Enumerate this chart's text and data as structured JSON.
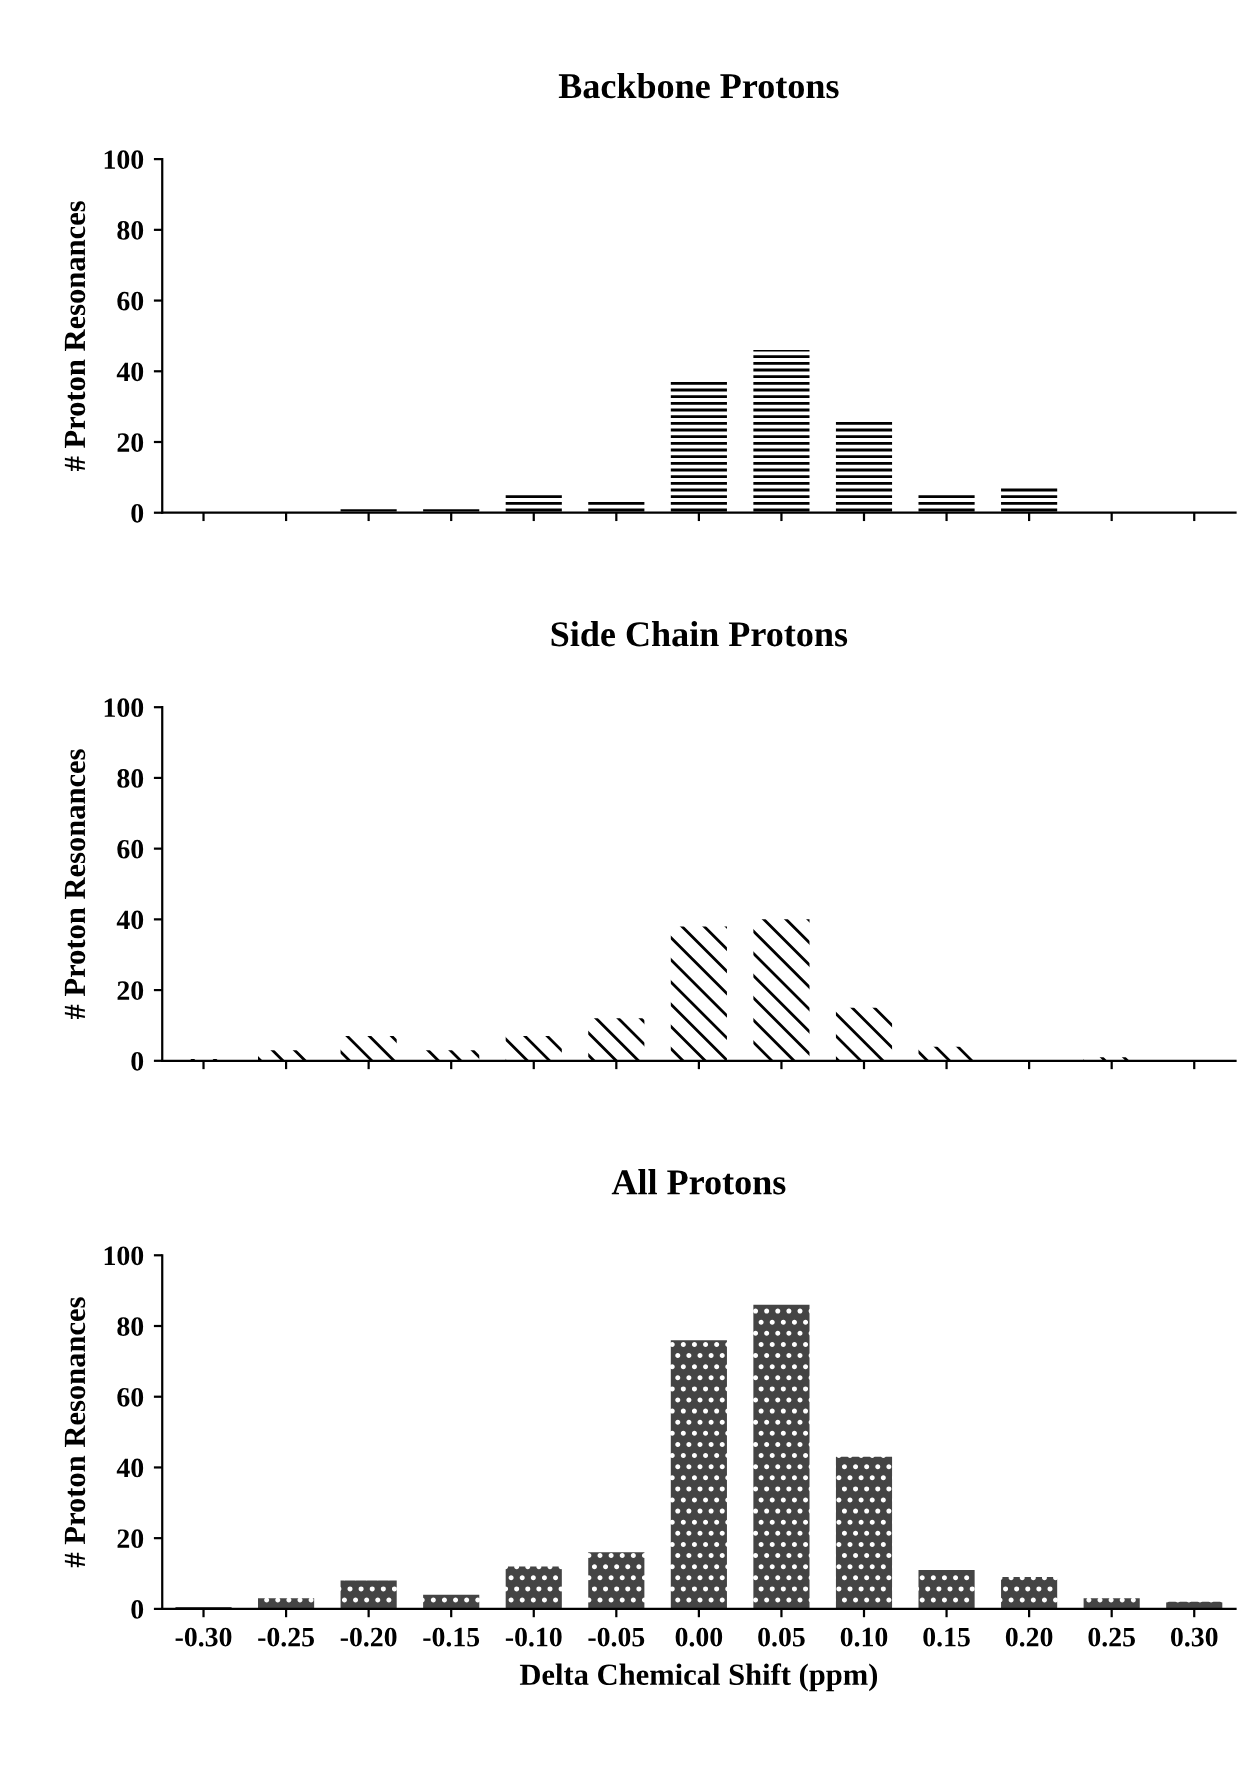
{
  "chart_data": [
    {
      "type": "bar",
      "title": "Backbone Protons",
      "ylabel": "# Proton Resonances",
      "categories": [
        "-0.30",
        "-0.25",
        "-0.20",
        "-0.15",
        "-0.10",
        "-0.05",
        "0.00",
        "0.05",
        "0.10",
        "0.15",
        "0.20",
        "0.25",
        "0.30"
      ],
      "tick_labels": "y",
      "series": [
        {
          "color": "#ffffff",
          "values": [
            0,
            0,
            1,
            1,
            5,
            4,
            38,
            46,
            26,
            5,
            7,
            0,
            0
          ]
        }
      ],
      "ylim": [
        0,
        100
      ],
      "yticks": [
        0,
        20,
        40,
        60,
        80,
        100
      ],
      "grid": false
    },
    {
      "type": "bar",
      "title": "Side Chain Protons",
      "ylabel": "# Proton Resonances",
      "categories": [
        "-0.30",
        "-0.25",
        "-0.20",
        "-0.15",
        "-0.10",
        "-0.05",
        "0.00",
        "0.05",
        "0.10",
        "0.15",
        "0.20",
        "0.25",
        "0.30"
      ],
      "tick_labels": "y",
      "series": [
        {
          "color": "#ffffff",
          "values": [
            0.5,
            3,
            7,
            3,
            7,
            12,
            38,
            40,
            15,
            4,
            0,
            1,
            0
          ]
        }
      ],
      "ylim": [
        0,
        100
      ],
      "yticks": [
        0,
        20,
        40,
        60,
        80,
        100
      ],
      "grid": false
    },
    {
      "type": "bar",
      "title": "All Protons",
      "ylabel": "# Proton Resonances",
      "xlabel": "Delta Chemical Shift (ppm)",
      "categories": [
        "-0.30",
        "-0.25",
        "-0.20",
        "-0.15",
        "-0.10",
        "-0.05",
        "0.00",
        "0.05",
        "0.10",
        "0.15",
        "0.20",
        "0.25",
        "0.30"
      ],
      "series": [
        {
          "color": "#444444",
          "values": [
            0.5,
            3,
            8,
            4,
            12,
            16,
            76,
            86,
            43,
            11,
            9,
            3,
            2
          ]
        }
      ],
      "ylim": [
        0,
        100
      ],
      "yticks": [
        0,
        20,
        40,
        60,
        80,
        100
      ],
      "grid": false
    }
  ]
}
